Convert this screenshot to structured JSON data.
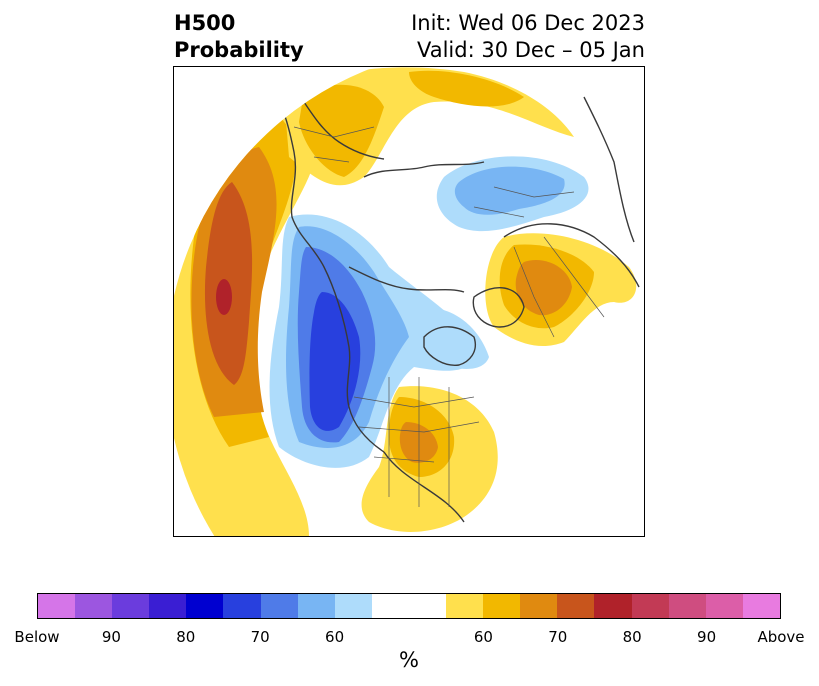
{
  "title": {
    "left_line1": "H500",
    "left_line2": "Probability",
    "right_line1": "Init: Wed 06 Dec 2023",
    "right_line2": "Valid: 30 Dec – 05 Jan"
  },
  "map": {
    "projection": "north-polar-stereographic",
    "regions": [
      {
        "name": "north-pacific-above",
        "category": "above",
        "peak_percent": 80
      },
      {
        "name": "western-north-america-below",
        "category": "below",
        "peak_percent": 80
      },
      {
        "name": "eastern-us-above",
        "category": "above",
        "peak_percent": 70
      },
      {
        "name": "europe-above",
        "category": "above",
        "peak_percent": 70
      },
      {
        "name": "siberia-arctic-below",
        "category": "below",
        "peak_percent": 70
      },
      {
        "name": "canada-arctic-above",
        "category": "above",
        "peak_percent": 60
      },
      {
        "name": "hudson-bay-below",
        "category": "below",
        "peak_percent": 60
      }
    ]
  },
  "colorbar": {
    "colors": [
      "#d575e8",
      "#9c56e0",
      "#6b3cdd",
      "#3a1ed3",
      "#0000d0",
      "#2840de",
      "#4f7be8",
      "#78b5f3",
      "#aedcfb",
      "#ffffff",
      "#ffffff",
      "#ffe04d",
      "#f2b800",
      "#e08a10",
      "#c8551c",
      "#b0222a",
      "#c23a55",
      "#cf4d80",
      "#dc5ea8",
      "#e87be0"
    ],
    "tick_labels": [
      "Below",
      "90",
      "80",
      "70",
      "60",
      "60",
      "70",
      "80",
      "90",
      "Above"
    ],
    "unit": "%"
  }
}
